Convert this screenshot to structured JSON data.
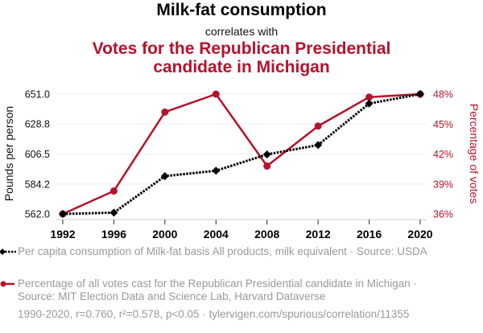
{
  "titles": {
    "main": "Milk-fat consumption",
    "connector": "correlates with",
    "secondary": "Votes for the Republican Presidential candidate in Michigan"
  },
  "chart_data": {
    "type": "line",
    "title": "Milk-fat consumption correlates with Votes for the Republican Presidential candidate in Michigan",
    "x": [
      1992,
      1996,
      2000,
      2004,
      2008,
      2012,
      2016,
      2020
    ],
    "x_tick_labels": [
      "1992",
      "1996",
      "2000",
      "2004",
      "2008",
      "2012",
      "2016",
      "2020"
    ],
    "grid": true,
    "series": [
      {
        "name": "Per capita consumption of Milk-fat basis All products, milk equivalent",
        "axis": "left",
        "color": "#000000",
        "style": "dotted",
        "marker": "diamond",
        "values": [
          562.0,
          563.0,
          590.1,
          594.1,
          606.2,
          613.2,
          644.0,
          651.0
        ]
      },
      {
        "name": "Percentage of all votes cast for the Republican Presidential candidate in Michigan",
        "axis": "right",
        "color": "#b5132b",
        "style": "solid",
        "marker": "circle",
        "values": [
          36.0,
          38.3,
          46.2,
          48.0,
          40.8,
          44.8,
          47.7,
          48.0
        ]
      }
    ],
    "left_axis": {
      "label": "Pounds per person",
      "range": [
        562.0,
        651.0
      ],
      "ticks": [
        562.0,
        584.2,
        606.5,
        628.8,
        651.0
      ],
      "tick_labels": [
        "562.0",
        "584.2",
        "606.5",
        "628.8",
        "651.0"
      ]
    },
    "right_axis": {
      "label": "Percentage of votes",
      "range": [
        36,
        48
      ],
      "ticks": [
        36,
        39,
        42,
        45,
        48
      ],
      "tick_labels": [
        "36%",
        "39%",
        "42%",
        "45%",
        "48%"
      ]
    },
    "legend_placement": "bottom-left"
  },
  "legend": [
    {
      "text": "Per capita consumption of Milk-fat basis All products, milk equivalent · Source: USDA"
    },
    {
      "text": "Percentage of all votes cast for the Republican Presidential candidate in Michigan · Source: MIT Election Data and Science Lab, Harvard Dataverse"
    }
  ],
  "footer": "1990-2020, r=0.760, r²=0.578, p<0.05 · tylervigen.com/spurious/correlation/11355"
}
